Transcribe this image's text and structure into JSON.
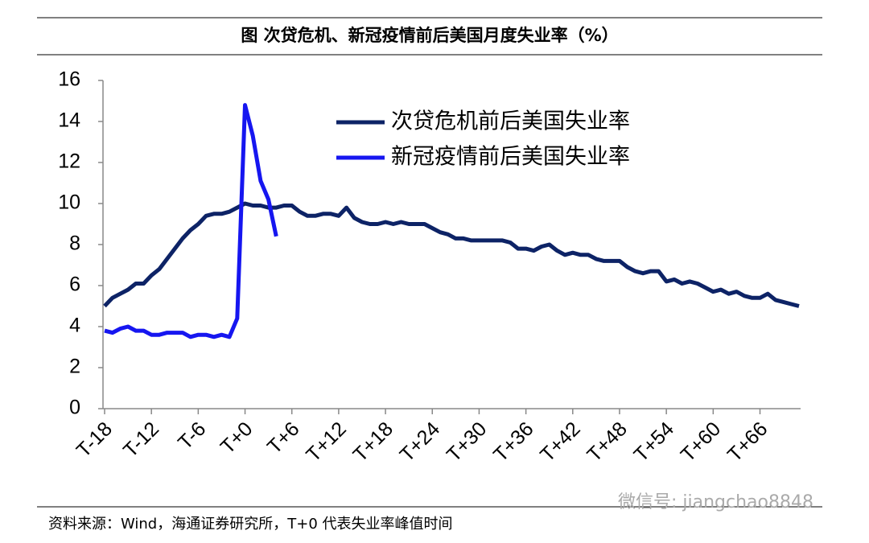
{
  "chart_data": {
    "type": "line",
    "title": "图  次贷危机、新冠疫情前后美国月度失业率（%）",
    "source": "资料来源：Wind，海通证券研究所，T+0 代表失业率峰值时间",
    "watermark": "微信号: jiangchao8848",
    "x": [
      -18,
      -17,
      -16,
      -15,
      -14,
      -13,
      -12,
      -11,
      -10,
      -9,
      -8,
      -7,
      -6,
      -5,
      -4,
      -3,
      -2,
      -1,
      0,
      1,
      2,
      3,
      4,
      5,
      6,
      7,
      8,
      9,
      10,
      11,
      12,
      13,
      14,
      15,
      16,
      17,
      18,
      19,
      20,
      21,
      22,
      23,
      24,
      25,
      26,
      27,
      28,
      29,
      30,
      31,
      32,
      33,
      34,
      35,
      36,
      37,
      38,
      39,
      40,
      41,
      42,
      43,
      44,
      45,
      46,
      47,
      48,
      49,
      50,
      51,
      52,
      53,
      54,
      55,
      56,
      57,
      58,
      59,
      60,
      61,
      62,
      63,
      64,
      65,
      66,
      67,
      68,
      69,
      70,
      71
    ],
    "series": [
      {
        "name": "次贷危机前后美国失业率",
        "color": "#0d2366",
        "values": [
          5.0,
          5.4,
          5.6,
          5.8,
          6.1,
          6.1,
          6.5,
          6.8,
          7.3,
          7.8,
          8.3,
          8.7,
          9.0,
          9.4,
          9.5,
          9.5,
          9.6,
          9.8,
          10.0,
          9.9,
          9.9,
          9.8,
          9.8,
          9.9,
          9.9,
          9.6,
          9.4,
          9.4,
          9.5,
          9.5,
          9.4,
          9.8,
          9.3,
          9.1,
          9.0,
          9.0,
          9.1,
          9.0,
          9.1,
          9.0,
          9.0,
          9.0,
          8.8,
          8.6,
          8.5,
          8.3,
          8.3,
          8.2,
          8.2,
          8.2,
          8.2,
          8.2,
          8.1,
          7.8,
          7.8,
          7.7,
          7.9,
          8.0,
          7.7,
          7.5,
          7.6,
          7.5,
          7.5,
          7.3,
          7.2,
          7.2,
          7.2,
          6.9,
          6.7,
          6.6,
          6.7,
          6.7,
          6.2,
          6.3,
          6.1,
          6.2,
          6.1,
          5.9,
          5.7,
          5.8,
          5.6,
          5.7,
          5.5,
          5.4,
          5.4,
          5.6,
          5.3,
          5.2,
          5.1,
          5.0
        ]
      },
      {
        "name": "新冠疫情前后美国失业率",
        "color": "#1616f0",
        "values": [
          3.8,
          3.7,
          3.9,
          4.0,
          3.8,
          3.8,
          3.6,
          3.6,
          3.7,
          3.7,
          3.7,
          3.5,
          3.6,
          3.6,
          3.5,
          3.6,
          3.5,
          4.4,
          14.8,
          13.3,
          11.1,
          10.2,
          8.4,
          null,
          null,
          null,
          null,
          null,
          null,
          null,
          null,
          null,
          null,
          null,
          null,
          null,
          null,
          null,
          null,
          null,
          null,
          null,
          null,
          null,
          null,
          null,
          null,
          null,
          null,
          null,
          null,
          null,
          null,
          null,
          null,
          null,
          null,
          null,
          null,
          null,
          null,
          null,
          null,
          null,
          null,
          null,
          null,
          null,
          null,
          null,
          null,
          null,
          null,
          null,
          null,
          null,
          null,
          null,
          null,
          null,
          null,
          null,
          null,
          null,
          null,
          null,
          null,
          null,
          null,
          null
        ]
      }
    ],
    "xlim": [
      -18,
      71
    ],
    "xticks": [
      {
        "value": -18,
        "label": "T-18"
      },
      {
        "value": -12,
        "label": "T-12"
      },
      {
        "value": -6,
        "label": "T-6"
      },
      {
        "value": 0,
        "label": "T+0"
      },
      {
        "value": 6,
        "label": "T+6"
      },
      {
        "value": 12,
        "label": "T+12"
      },
      {
        "value": 18,
        "label": "T+18"
      },
      {
        "value": 24,
        "label": "T+24"
      },
      {
        "value": 30,
        "label": "T+30"
      },
      {
        "value": 36,
        "label": "T+36"
      },
      {
        "value": 42,
        "label": "T+42"
      },
      {
        "value": 48,
        "label": "T+48"
      },
      {
        "value": 54,
        "label": "T+54"
      },
      {
        "value": 60,
        "label": "T+60"
      },
      {
        "value": 66,
        "label": "T+66"
      }
    ],
    "ylim": [
      0,
      16
    ],
    "yticks": [
      0,
      2,
      4,
      6,
      8,
      10,
      12,
      14,
      16
    ],
    "grid": false
  }
}
